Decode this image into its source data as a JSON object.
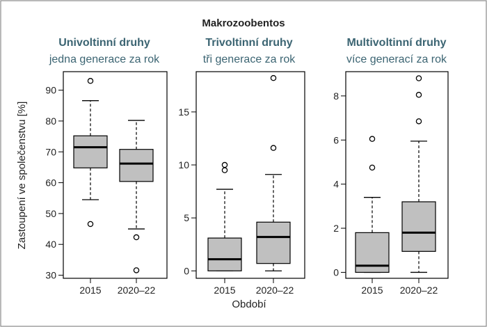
{
  "title": "Makrozoobentos",
  "ylabel": "Zastoupení ve společenstvu [%]",
  "xlabel": "Období",
  "colors": {
    "box_fill": "#c0c0c0",
    "accent_title": "#3b6472",
    "border": "#8a8a8a",
    "text": "#222222"
  },
  "chart_data": [
    {
      "type": "boxplot",
      "title": "Univoltinní druhy",
      "subtitle": "jedna generace za rok",
      "categories": [
        "2015",
        "2020–22"
      ],
      "yticks": [
        30,
        40,
        50,
        60,
        70,
        80,
        90
      ],
      "ylim": [
        29,
        96
      ],
      "boxes": [
        {
          "label": "2015",
          "whisker_low": 54.5,
          "q1": 64.8,
          "median": 71.5,
          "q3": 75.2,
          "whisker_high": 86.6,
          "outliers": [
            93,
            46.6
          ]
        },
        {
          "label": "2020–22",
          "whisker_low": 45,
          "q1": 60.4,
          "median": 66.2,
          "q3": 70.8,
          "whisker_high": 80.2,
          "outliers": [
            42.3,
            31.6
          ]
        }
      ]
    },
    {
      "type": "boxplot",
      "title": "Trivoltinní druhy",
      "subtitle": "tři generace za rok",
      "categories": [
        "2015",
        "2020–22"
      ],
      "yticks": [
        0,
        5,
        10,
        15
      ],
      "ylim": [
        -0.7,
        18.8
      ],
      "boxes": [
        {
          "label": "2015",
          "whisker_low": 0,
          "q1": 0,
          "median": 1.1,
          "q3": 3.1,
          "whisker_high": 7.7,
          "outliers": [
            9.5,
            10
          ]
        },
        {
          "label": "2020–22",
          "whisker_low": 0,
          "q1": 0.7,
          "median": 3.2,
          "q3": 4.6,
          "whisker_high": 9.1,
          "outliers": [
            11.6,
            18.2
          ]
        }
      ]
    },
    {
      "type": "boxplot",
      "title": "Multivoltinní druhy",
      "subtitle": "více generací za rok",
      "categories": [
        "2015",
        "2020–22"
      ],
      "yticks": [
        0,
        2,
        4,
        6,
        8
      ],
      "ylim": [
        -0.27,
        9.1
      ],
      "boxes": [
        {
          "label": "2015",
          "whisker_low": 0,
          "q1": 0,
          "median": 0.3,
          "q3": 1.8,
          "whisker_high": 3.4,
          "outliers": [
            4.75,
            6.05
          ]
        },
        {
          "label": "2020–22",
          "whisker_low": 0,
          "q1": 0.95,
          "median": 1.8,
          "q3": 3.2,
          "whisker_high": 5.95,
          "outliers": [
            6.85,
            8.05,
            8.8
          ]
        }
      ]
    }
  ]
}
